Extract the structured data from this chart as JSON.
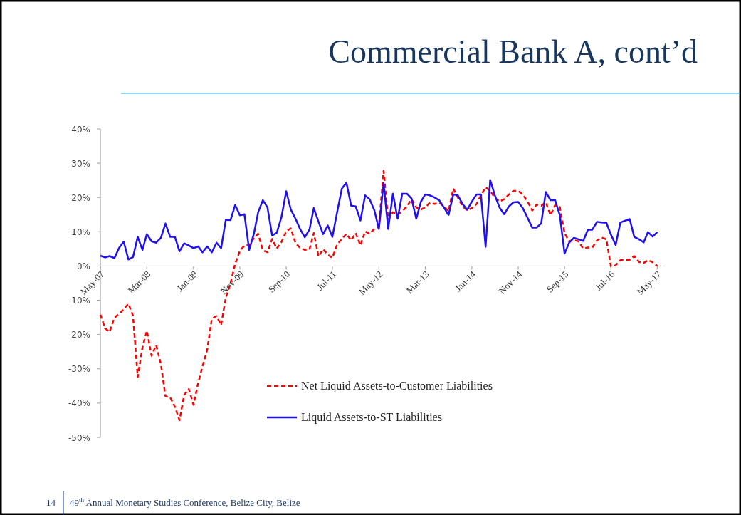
{
  "chart_data": {
    "type": "line",
    "title": "Commercial Bank A, cont’d",
    "x": [
      "2007-05",
      "2007-06",
      "2007-07",
      "2007-08",
      "2007-09",
      "2007-10",
      "2007-11",
      "2007-12",
      "2008-01",
      "2008-02",
      "2008-03",
      "2008-04",
      "2008-05",
      "2008-06",
      "2008-07",
      "2008-08",
      "2008-09",
      "2008-10",
      "2008-11",
      "2008-12",
      "2009-01",
      "2009-02",
      "2009-03",
      "2009-04",
      "2009-05",
      "2009-06",
      "2009-07",
      "2009-08",
      "2009-09",
      "2009-10",
      "2009-11",
      "2009-12",
      "2010-01",
      "2010-02",
      "2010-03",
      "2010-04",
      "2010-05",
      "2010-06",
      "2010-07",
      "2010-08",
      "2010-09",
      "2010-10",
      "2010-11",
      "2010-12",
      "2011-01",
      "2011-02",
      "2011-03",
      "2011-04",
      "2011-05",
      "2011-06",
      "2011-07",
      "2011-08",
      "2011-09",
      "2011-10",
      "2011-11",
      "2011-12",
      "2012-01",
      "2012-02",
      "2012-03",
      "2012-04",
      "2012-05",
      "2012-06",
      "2012-07",
      "2012-08",
      "2012-09",
      "2012-10",
      "2012-11",
      "2012-12",
      "2013-01",
      "2013-02",
      "2013-03",
      "2013-04",
      "2013-05",
      "2013-06",
      "2013-07",
      "2013-08",
      "2013-09",
      "2013-10",
      "2013-11",
      "2013-12",
      "2014-01",
      "2014-02",
      "2014-03",
      "2014-04",
      "2014-05",
      "2014-06",
      "2014-07",
      "2014-08",
      "2014-09",
      "2014-10",
      "2014-11",
      "2014-12",
      "2015-01",
      "2015-02",
      "2015-03",
      "2015-04",
      "2015-05",
      "2015-06",
      "2015-07",
      "2015-08",
      "2015-09",
      "2015-10",
      "2015-11",
      "2015-12",
      "2016-01",
      "2016-02",
      "2016-03",
      "2016-04",
      "2016-05",
      "2016-06",
      "2016-07",
      "2016-08",
      "2016-09",
      "2016-10",
      "2016-11",
      "2016-12",
      "2017-01",
      "2017-02",
      "2017-03",
      "2017-04",
      "2017-05"
    ],
    "series": [
      {
        "name": "Net Liquid Assets-to-Customer Liabilities",
        "color": "#ff0000",
        "line_style": "dashed",
        "values": [
          -14.2,
          -18.2,
          -19.2,
          -15.1,
          -14.0,
          -12.6,
          -11.0,
          -14.5,
          -32.4,
          -23.8,
          -18.9,
          -26.2,
          -23.1,
          -28.6,
          -38.0,
          -38.3,
          -41.1,
          -45.0,
          -37.6,
          -35.9,
          -40.5,
          -34.0,
          -29.3,
          -24.4,
          -15.4,
          -14.6,
          -17.2,
          -9.2,
          -5.0,
          0.6,
          4.4,
          6.0,
          6.1,
          8.1,
          9.4,
          4.6,
          4.0,
          7.9,
          5.1,
          7.0,
          10.1,
          11.0,
          6.7,
          5.3,
          4.7,
          4.9,
          9.6,
          2.8,
          4.9,
          3.3,
          2.4,
          6.3,
          7.9,
          9.4,
          7.5,
          9.6,
          6.0,
          10.1,
          9.4,
          10.8,
          11.5,
          27.8,
          13.6,
          15.7,
          15.0,
          16.0,
          17.4,
          19.5,
          17.1,
          16.5,
          17.1,
          18.5,
          18.1,
          18.5,
          17.4,
          16.0,
          22.6,
          20.0,
          17.4,
          16.3,
          16.9,
          18.1,
          20.6,
          23.0,
          21.9,
          19.9,
          18.8,
          19.5,
          20.9,
          21.9,
          21.9,
          20.9,
          18.8,
          16.2,
          17.9,
          17.6,
          18.6,
          14.8,
          17.8,
          17.2,
          9.6,
          7.2,
          7.6,
          7.2,
          5.1,
          5.4,
          5.4,
          7.5,
          8.3,
          7.8,
          -0.1,
          0.2,
          1.7,
          1.8,
          1.8,
          2.9,
          1.2,
          0.9,
          1.7,
          1.1,
          0.0
        ]
      },
      {
        "name": "Liquid Assets-to-ST Liabilities",
        "color": "#1f10f0",
        "line_style": "solid",
        "values": [
          3.0,
          2.5,
          2.9,
          2.3,
          5.3,
          7.1,
          1.9,
          2.6,
          8.5,
          4.7,
          9.3,
          7.2,
          6.8,
          8.2,
          12.4,
          8.5,
          8.5,
          4.3,
          6.6,
          6.0,
          5.2,
          5.7,
          4.0,
          5.7,
          4.0,
          6.8,
          5.2,
          13.5,
          13.4,
          17.8,
          14.8,
          15.1,
          4.7,
          9.4,
          15.7,
          19.2,
          17.1,
          8.9,
          9.7,
          14.3,
          21.8,
          16.5,
          13.8,
          10.8,
          8.4,
          10.7,
          16.9,
          12.9,
          9.3,
          11.8,
          8.5,
          15.7,
          22.6,
          24.3,
          17.6,
          17.4,
          13.3,
          20.6,
          19.5,
          16.3,
          10.8,
          24.2,
          10.8,
          21.1,
          13.8,
          21.1,
          21.1,
          19.7,
          13.8,
          18.8,
          20.9,
          20.6,
          20.0,
          19.2,
          17.1,
          14.9,
          20.9,
          20.6,
          18.1,
          16.4,
          18.8,
          20.9,
          20.9,
          5.6,
          25.1,
          20.6,
          17.1,
          15.1,
          17.4,
          18.6,
          18.7,
          16.9,
          14.1,
          11.2,
          11.2,
          12.5,
          21.6,
          19.2,
          19.2,
          14.8,
          3.6,
          6.8,
          8.2,
          7.8,
          7.3,
          10.6,
          10.6,
          12.9,
          12.7,
          12.6,
          9.2,
          6.1,
          12.7,
          13.2,
          13.7,
          8.5,
          7.8,
          6.9,
          9.9,
          8.6,
          9.9
        ]
      }
    ],
    "xlim": [
      "2007-05",
      "2017-06"
    ],
    "xticks": [
      {
        "value": "2007-05",
        "label": "May-07"
      },
      {
        "value": "2008-03",
        "label": "Mar-08"
      },
      {
        "value": "2009-01",
        "label": "Jan-09"
      },
      {
        "value": "2009-11",
        "label": "Nov-09"
      },
      {
        "value": "2010-09",
        "label": "Sep-10"
      },
      {
        "value": "2011-07",
        "label": "Jul-11"
      },
      {
        "value": "2012-05",
        "label": "May-12"
      },
      {
        "value": "2013-03",
        "label": "Mar-13"
      },
      {
        "value": "2014-01",
        "label": "Jan-14"
      },
      {
        "value": "2014-11",
        "label": "Nov-14"
      },
      {
        "value": "2015-09",
        "label": "Sep-15"
      },
      {
        "value": "2016-07",
        "label": "Jul-16"
      },
      {
        "value": "2017-05",
        "label": "May-17"
      }
    ],
    "ylim": [
      -50,
      40
    ],
    "yticks": [
      {
        "value": -50,
        "label": "-50%"
      },
      {
        "value": -40,
        "label": "-40%"
      },
      {
        "value": -30,
        "label": "-30%"
      },
      {
        "value": -20,
        "label": "-20%"
      },
      {
        "value": -10,
        "label": "-10%"
      },
      {
        "value": 0,
        "label": "0%"
      },
      {
        "value": 10,
        "label": "10%"
      },
      {
        "value": 20,
        "label": "20%"
      },
      {
        "value": 30,
        "label": "30%"
      },
      {
        "value": 40,
        "label": "40%"
      }
    ],
    "grid": false,
    "legend": "bottom",
    "annotations": [
      "14",
      "49$^{th}$ Annual Monetary Studies Conference, Belize City, Belize"
    ]
  }
}
